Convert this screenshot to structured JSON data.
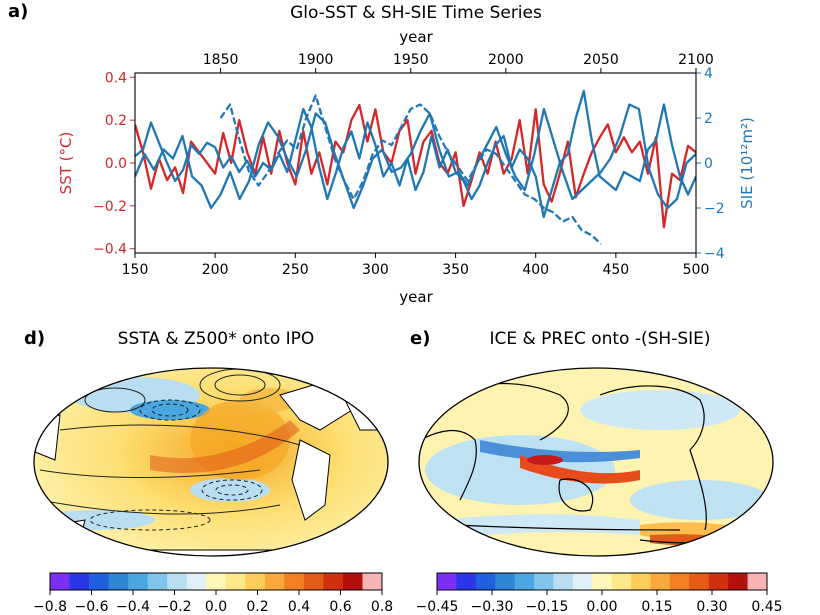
{
  "panel_a": {
    "label": "a)",
    "title": "Glo-SST & SH-SIE Time Series",
    "xlabel_bottom": "year",
    "xlabel_top": "year",
    "ylabel_left": "SST (°C)",
    "ylabel_right": "SIE (10¹²m²)"
  },
  "panel_d": {
    "label": "d)",
    "title": "SSTA & Z500* onto IPO"
  },
  "panel_e": {
    "label": "e)",
    "title": "ICE & PREC onto -(SH-SIE)"
  },
  "colorbar_d": {
    "ticks": [
      "−0.8",
      "−0.6",
      "−0.4",
      "−0.2",
      "0.0",
      "0.2",
      "0.4",
      "0.6",
      "0.8"
    ]
  },
  "colorbar_e": {
    "ticks": [
      "−0.45",
      "−0.30",
      "−0.15",
      "0.00",
      "0.15",
      "0.30",
      "0.45"
    ]
  },
  "colors": {
    "sst": "#d62728",
    "sie": "#1f77b4"
  },
  "chart_data": [
    {
      "type": "line",
      "title": "Glo-SST & SH-SIE Time Series",
      "xlabel": "year",
      "x_bottom": {
        "range": [
          150,
          500
        ],
        "ticks": [
          150,
          200,
          250,
          300,
          350,
          400,
          450,
          500
        ]
      },
      "x_top": {
        "range": [
          1805,
          2100
        ],
        "ticks": [
          1850,
          1900,
          1950,
          2000,
          2050,
          2100
        ]
      },
      "y_left": {
        "label": "SST (°C)",
        "range": [
          -0.42,
          0.42
        ],
        "ticks": [
          -0.4,
          -0.2,
          0.0,
          0.2,
          0.4
        ]
      },
      "y_right": {
        "label": "SIE (10¹²m²)",
        "range": [
          -4,
          4
        ],
        "ticks": [
          -4,
          -2,
          0,
          2,
          4
        ]
      },
      "series": [
        {
          "axis": "left-bottom",
          "color": "#d62728",
          "style": "solid",
          "x": [
            150,
            155,
            160,
            165,
            170,
            175,
            180,
            185,
            190,
            195,
            200,
            205,
            210,
            215,
            220,
            225,
            230,
            235,
            240,
            245,
            250,
            255,
            260,
            265,
            270,
            275,
            280,
            285,
            290,
            295,
            300,
            305,
            310,
            315,
            320,
            325,
            330,
            335,
            340,
            345,
            350,
            355,
            360,
            365,
            370,
            375,
            380,
            385,
            390,
            395,
            400,
            405,
            410,
            415,
            420,
            425,
            430,
            435,
            440,
            445,
            450,
            455,
            460,
            465,
            470,
            475,
            480,
            485,
            490,
            495,
            500
          ],
          "y": [
            0.18,
            0.05,
            -0.12,
            0.02,
            -0.08,
            -0.02,
            -0.14,
            0.1,
            0.05,
            0.0,
            -0.05,
            0.14,
            0.0,
            0.2,
            0.05,
            -0.05,
            0.12,
            -0.05,
            0.15,
            0.0,
            -0.1,
            0.15,
            -0.05,
            0.05,
            -0.1,
            0.1,
            0.05,
            0.2,
            0.27,
            0.1,
            0.25,
            0.05,
            0.0,
            0.15,
            0.2,
            -0.05,
            0.1,
            0.15,
            0.0,
            -0.05,
            0.05,
            -0.2,
            -0.08,
            0.05,
            -0.05,
            0.1,
            -0.05,
            0.02,
            0.2,
            -0.05,
            0.25,
            -0.1,
            -0.18,
            -0.05,
            0.1,
            -0.16,
            -0.05,
            0.05,
            0.12,
            0.18,
            0.05,
            0.12,
            0.05,
            0.1,
            -0.05,
            0.12,
            -0.3,
            -0.05,
            -0.08,
            0.08,
            0.05
          ]
        },
        {
          "axis": "right-bottom",
          "color": "#1f77b4",
          "style": "solid",
          "x": [
            150,
            155,
            160,
            165,
            170,
            175,
            180,
            185,
            190,
            195,
            200,
            205,
            210,
            215,
            220,
            225,
            230,
            235,
            240,
            245,
            250,
            255,
            260,
            265,
            270,
            275,
            280,
            285,
            290,
            295,
            300,
            305,
            310,
            315,
            320,
            325,
            330,
            335,
            340,
            345,
            350,
            355,
            360,
            365,
            370,
            375,
            380,
            385,
            390,
            395,
            400,
            405,
            410,
            415,
            420,
            425,
            430,
            435,
            440,
            445,
            450,
            455,
            460,
            465,
            470,
            475,
            480,
            485,
            490,
            495,
            500
          ],
          "y": [
            0.3,
            0.6,
            1.8,
            0.9,
            0.0,
            -0.8,
            -0.3,
            0.8,
            0.4,
            0.9,
            0.7,
            -0.2,
            0.3,
            -0.4,
            0.1,
            -0.6,
            0.0,
            -0.3,
            0.4,
            -0.4,
            1.0,
            2.4,
            1.6,
            -0.2,
            -1.6,
            -0.5,
            0.7,
            1.4,
            0.2,
            1.8,
            0.8,
            -0.6,
            0.0,
            -1.0,
            0.2,
            -1.2,
            -0.4,
            1.2,
            -0.2,
            0.6,
            -0.4,
            -0.8,
            -1.6,
            -1.0,
            0.0,
            0.8,
            1.2,
            -0.2,
            0.6,
            0.2,
            -0.6,
            -2.4,
            -1.2,
            0.0,
            0.4,
            2.0,
            3.2,
            1.0,
            -0.6,
            -0.9,
            -1.2,
            -0.4,
            -0.6,
            -0.8,
            0.6,
            1.0,
            2.6,
            0.8,
            -0.6,
            -1.4,
            -0.6
          ]
        },
        {
          "axis": "right-top",
          "color": "#1f77b4",
          "style": "solid",
          "x": [
            1805,
            1810,
            1815,
            1820,
            1825,
            1830,
            1835,
            1840,
            1845,
            1850,
            1855,
            1860,
            1865,
            1870,
            1875,
            1880,
            1885,
            1890,
            1895,
            1900,
            1905,
            1910,
            1915,
            1920,
            1925,
            1930,
            1935,
            1940,
            1945,
            1950,
            1955,
            1960,
            1965,
            1970,
            1975,
            1980,
            1985,
            1990,
            1995,
            2000,
            2005,
            2010,
            2015,
            2020,
            2025,
            2030,
            2035,
            2040,
            2045,
            2050,
            2055,
            2060,
            2065,
            2070,
            2075,
            2080,
            2085,
            2090,
            2095,
            2100
          ],
          "y": [
            -0.6,
            0.4,
            -0.3,
            0.6,
            0.2,
            1.2,
            -0.6,
            -1.0,
            -2.0,
            -1.4,
            -0.4,
            -1.6,
            -0.8,
            0.8,
            1.8,
            1.2,
            0.2,
            -0.6,
            0.6,
            2.2,
            1.8,
            0.4,
            -0.8,
            -2.0,
            -1.0,
            0.2,
            0.6,
            -0.4,
            -0.2,
            0.4,
            1.4,
            2.2,
            0.6,
            -0.6,
            -0.4,
            -1.0,
            0.0,
            0.8,
            1.6,
            0.4,
            -0.6,
            -1.2,
            0.4,
            2.4,
            1.0,
            -0.4,
            -1.6,
            -1.2,
            -0.8,
            -0.4,
            0.2,
            1.2,
            2.6,
            2.4,
            -0.2,
            -1.4,
            -2.0,
            -1.6,
            0.0,
            0.4
          ]
        },
        {
          "axis": "right-top",
          "color": "#1f77b4",
          "style": "dashed",
          "x": [
            1850,
            1855,
            1860,
            1865,
            1870,
            1875,
            1880,
            1885,
            1890,
            1895,
            1900,
            1905,
            1910,
            1915,
            1920,
            1925,
            1930,
            1935,
            1940,
            1945,
            1950,
            1955,
            1960,
            1965,
            1970,
            1975,
            1980,
            1985,
            1990,
            1995,
            2000,
            2005,
            2010,
            2015,
            2020,
            2025,
            2030,
            2035,
            2040,
            2045,
            2050
          ],
          "y": [
            2.0,
            2.6,
            1.0,
            -0.4,
            -1.0,
            -0.4,
            0.4,
            1.0,
            0.6,
            2.0,
            3.0,
            1.6,
            0.2,
            -0.8,
            -1.6,
            -0.8,
            0.4,
            1.0,
            0.8,
            1.6,
            2.4,
            2.6,
            2.2,
            1.2,
            0.4,
            -0.2,
            -0.8,
            0.0,
            0.6,
            0.4,
            -0.2,
            -0.8,
            -1.4,
            -1.6,
            -2.0,
            -2.2,
            -2.6,
            -2.4,
            -3.0,
            -3.2,
            -3.6
          ]
        }
      ]
    },
    {
      "type": "heatmap",
      "title": "SSTA & Z500* onto IPO",
      "colorbar": {
        "range": [
          -0.8,
          0.8
        ],
        "ticks": [
          -0.8,
          -0.6,
          -0.4,
          -0.2,
          0.0,
          0.2,
          0.4,
          0.6,
          0.8
        ]
      }
    },
    {
      "type": "heatmap",
      "title": "ICE & PREC onto -(SH-SIE)",
      "colorbar": {
        "range": [
          -0.45,
          0.45
        ],
        "ticks": [
          -0.45,
          -0.3,
          -0.15,
          0.0,
          0.15,
          0.3,
          0.45
        ]
      }
    }
  ]
}
